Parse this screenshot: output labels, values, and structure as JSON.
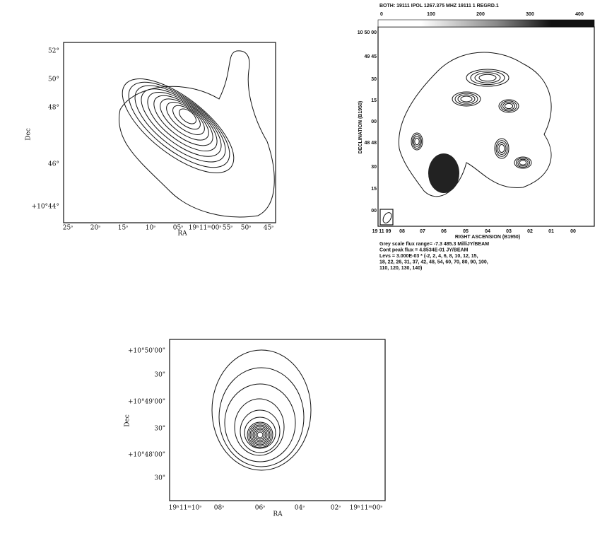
{
  "panels": [
    {
      "y_label": "Dec",
      "x_label": "RA",
      "y_ticks": [
        "52°",
        "50°",
        "48°",
        "46°",
        "+10°44°"
      ],
      "x_ticks": [
        "25ˢ",
        "20ˢ",
        "15ˢ",
        "10ˢ",
        "05ˢ",
        "19ʰ11ᵐ00ˢ",
        "55ˢ",
        "50ˢ",
        "45ˢ"
      ]
    },
    {
      "header": "BOTH: 19111  IPOL  1267.375 MHZ  19111 1 REGRD.1",
      "colorbar_ticks": [
        "0",
        "100",
        "200",
        "300",
        "400"
      ],
      "y_label": "DECLINATION (B1950)",
      "x_label": "RIGHT ASCENSION (B1950)",
      "y_ticks": [
        "10 50 00",
        "49 45",
        "30",
        "15",
        "00",
        "48 48",
        "30",
        "15",
        "00"
      ],
      "x_ticks": [
        "19 11 09",
        "08",
        "07",
        "06",
        "05",
        "04",
        "03",
        "02",
        "01",
        "00"
      ],
      "caption": [
        "Grey scale flux range= -7.3 485.3 MilliJY/BEAM",
        "Cont peak flux =  4.8534E-01 JY/BEAM",
        "Levs = 3.000E-03 * (-2, 2, 4, 6, 8, 10, 12, 15,",
        "18, 22, 26, 31, 37, 42, 48, 54, 60, 70, 80, 90, 100,",
        "110, 120, 130, 140)"
      ]
    },
    {
      "y_label": "Dec",
      "x_label": "RA",
      "y_ticks": [
        "+10°50'00\"",
        "30\"",
        "+10°49'00\"",
        "30\"",
        "+10°48'00\"",
        "30\""
      ],
      "x_ticks": [
        "19ʰ11ᵐ10ˢ",
        "08ˢ",
        "06ˢ",
        "04ˢ",
        "02ˢ",
        "19ʰ11ᵐ00ˢ"
      ]
    }
  ]
}
